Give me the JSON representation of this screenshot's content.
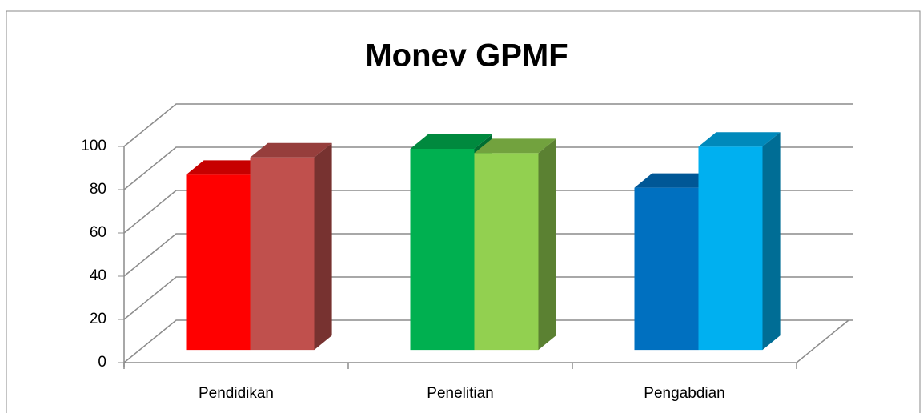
{
  "chart_data": {
    "type": "bar3d",
    "title": "Monev GPMF",
    "categories": [
      "Pendidikan",
      "Penelitian",
      "Pengabdian"
    ],
    "series": [
      {
        "colors": [
          "#ff0000",
          "#00b050",
          "#0070c0"
        ],
        "values": [
          81,
          93,
          75
        ]
      },
      {
        "colors": [
          "#c0504d",
          "#92d050",
          "#00b0f0"
        ],
        "values": [
          89,
          91,
          94
        ]
      }
    ],
    "ylim": [
      0,
      100
    ],
    "yticks": [
      0,
      20,
      40,
      60,
      80,
      100
    ],
    "grid": true
  }
}
